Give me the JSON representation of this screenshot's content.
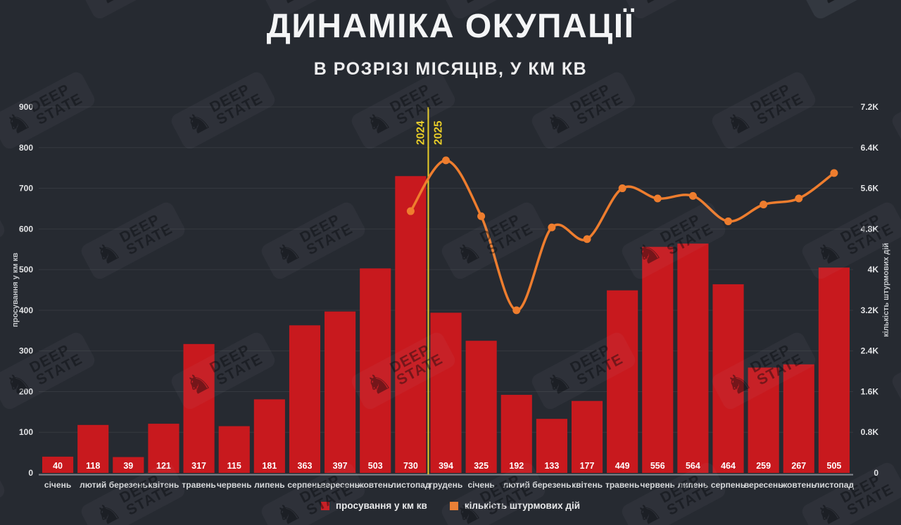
{
  "header": {
    "title": "ДИНАМІКА ОКУПАЦІЇ",
    "subtitle": "В РОЗРІЗІ МІСЯЦІВ, У КМ КВ"
  },
  "watermark": {
    "line1": "DEEP",
    "line2": "STATE",
    "icon": "knight-chess-icon"
  },
  "legend": [
    {
      "label": "просування у км кв",
      "color": "#c8191e"
    },
    {
      "label": "кількість штурмових дій",
      "color": "#ee7d2e"
    }
  ],
  "chart_data": {
    "type": "bar+line combo",
    "title": "ДИНАМІКА ОКУПАЦІЇ",
    "subtitle": "В РОЗРІЗІ МІСЯЦІВ, У КМ КВ",
    "categories": [
      "січень",
      "лютий",
      "березень",
      "квітень",
      "травень",
      "червень",
      "липень",
      "серпень",
      "вересень",
      "жовтень",
      "листопад",
      "грудень",
      "січень",
      "лютий",
      "березень",
      "квітень",
      "травень",
      "червень",
      "липень",
      "серпень",
      "вересень",
      "жовтень",
      "листопад"
    ],
    "series": [
      {
        "name": "просування у км кв",
        "type": "bar",
        "axis": "left",
        "color": "#c8191e",
        "values": [
          40,
          118,
          39,
          121,
          317,
          115,
          181,
          363,
          397,
          503,
          730,
          394,
          325,
          192,
          133,
          177,
          449,
          556,
          564,
          464,
          259,
          267,
          505
        ]
      },
      {
        "name": "кількість штурмових дій",
        "type": "line",
        "axis": "right",
        "color": "#ee7d2e",
        "values": [
          null,
          null,
          null,
          null,
          null,
          null,
          null,
          null,
          null,
          null,
          5150,
          6150,
          5050,
          3200,
          4830,
          4600,
          5600,
          5400,
          5450,
          4950,
          5280,
          5400,
          5900
        ]
      }
    ],
    "left_axis": {
      "label": "просування у км кв",
      "min": 0,
      "max": 900,
      "step": 100,
      "ticks": [
        "0",
        "100",
        "200",
        "300",
        "400",
        "500",
        "600",
        "700",
        "800",
        "900"
      ]
    },
    "right_axis": {
      "label": "кількість штурмових дій",
      "min": 0,
      "max": 7200,
      "step": 800,
      "ticks": [
        "0",
        "0.8K",
        "1.6K",
        "2.4K",
        "3.2K",
        "4K",
        "4.8K",
        "5.6K",
        "6.4K",
        "7.2K"
      ]
    },
    "year_divider": {
      "between_categories": [
        "листопад",
        "грудень"
      ],
      "after_index": 10,
      "left_label": "2024",
      "right_label": "2025",
      "color": "#e8cd28"
    },
    "bar_value_labels": true,
    "grid": "horizontal",
    "legend_position": "bottom-center"
  },
  "colors": {
    "background": "#262a31",
    "bar": "#c8191e",
    "line": "#ee7d2e",
    "divider": "#e8cd28",
    "grid": "rgba(255,255,255,0.07)",
    "zero_axis": "#84888e",
    "tick_text": "#e3e4e6",
    "month_text": "#d6d8da",
    "value_text": "#ffffff",
    "axis_label_text": "#c5c8cc"
  }
}
